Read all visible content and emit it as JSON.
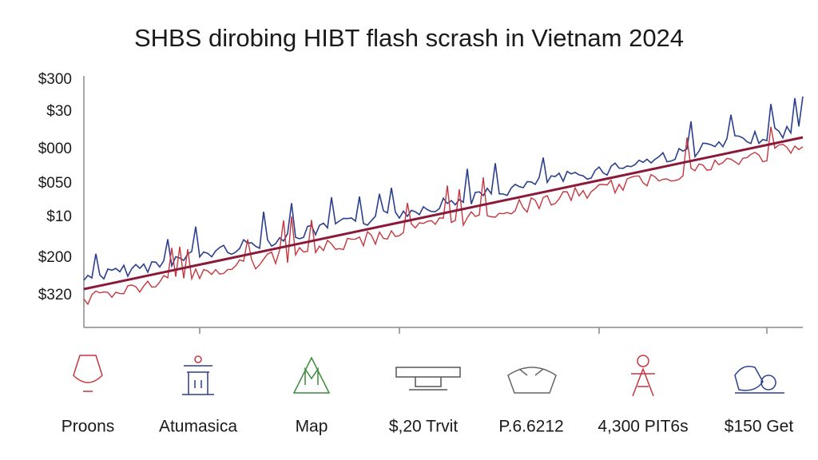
{
  "title": "SHBS dirobing HIBT flash scrash in Vietnam 2024",
  "y_labels": [
    "$300",
    "$30",
    "$000",
    "$050",
    "$10",
    "$200",
    "$320"
  ],
  "items": [
    {
      "label": "Proons"
    },
    {
      "label": "Atumasica"
    },
    {
      "label": "Map"
    },
    {
      "label": "$,20 Trvit"
    },
    {
      "label": "P.6.6212"
    },
    {
      "label": "4,300 PIT6s"
    },
    {
      "label": "$150 Get"
    }
  ]
}
